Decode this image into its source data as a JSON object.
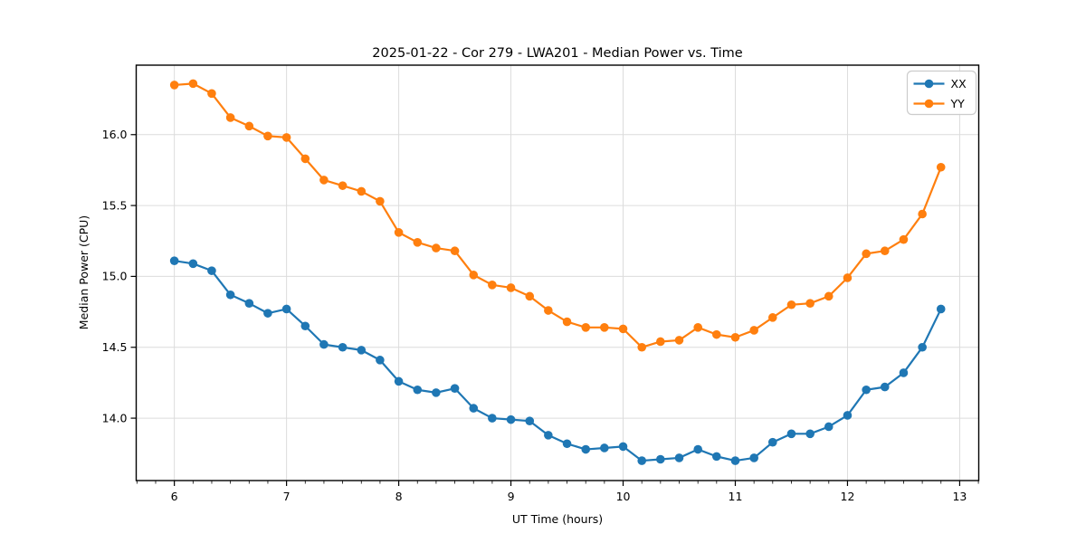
{
  "chart_data": {
    "type": "line",
    "title": "2025-01-22 - Cor 279 - LWA201 - Median Power vs. Time",
    "xlabel": "UT Time (hours)",
    "ylabel": "Median Power (CPU)",
    "xlim": [
      5.66,
      13.17
    ],
    "ylim": [
      13.56,
      16.49
    ],
    "xticks": [
      6,
      7,
      8,
      9,
      10,
      11,
      12,
      13
    ],
    "yticks": [
      14.0,
      14.5,
      15.0,
      15.5,
      16.0
    ],
    "x_minor_tick_step": 0.166667,
    "grid": true,
    "grid_color": "#dcdcdc",
    "legend_position": "upper right",
    "x": [
      6.0,
      6.167,
      6.333,
      6.5,
      6.667,
      6.833,
      7.0,
      7.167,
      7.333,
      7.5,
      7.667,
      7.833,
      8.0,
      8.167,
      8.333,
      8.5,
      8.667,
      8.833,
      9.0,
      9.167,
      9.333,
      9.5,
      9.667,
      9.833,
      10.0,
      10.167,
      10.333,
      10.5,
      10.667,
      10.833,
      11.0,
      11.167,
      11.333,
      11.5,
      11.667,
      11.833,
      12.0,
      12.167,
      12.333,
      12.5,
      12.667,
      12.833
    ],
    "series": [
      {
        "name": "XX",
        "color": "#1f77b4",
        "values": [
          15.11,
          15.09,
          15.04,
          14.87,
          14.81,
          14.74,
          14.77,
          14.65,
          14.52,
          14.5,
          14.48,
          14.41,
          14.26,
          14.2,
          14.18,
          14.21,
          14.07,
          14.0,
          13.99,
          13.98,
          13.88,
          13.82,
          13.78,
          13.79,
          13.8,
          13.7,
          13.71,
          13.72,
          13.78,
          13.73,
          13.7,
          13.72,
          13.83,
          13.89,
          13.89,
          13.94,
          14.02,
          14.2,
          14.22,
          14.32,
          14.5,
          14.77
        ]
      },
      {
        "name": "YY",
        "color": "#ff7f0e",
        "values": [
          16.35,
          16.36,
          16.29,
          16.12,
          16.06,
          15.99,
          15.98,
          15.83,
          15.68,
          15.64,
          15.6,
          15.53,
          15.31,
          15.24,
          15.2,
          15.18,
          15.01,
          14.94,
          14.92,
          14.86,
          14.76,
          14.68,
          14.64,
          14.64,
          14.63,
          14.5,
          14.54,
          14.55,
          14.64,
          14.59,
          14.57,
          14.62,
          14.71,
          14.8,
          14.81,
          14.86,
          14.99,
          15.16,
          15.18,
          15.26,
          15.44,
          15.77
        ]
      }
    ]
  }
}
